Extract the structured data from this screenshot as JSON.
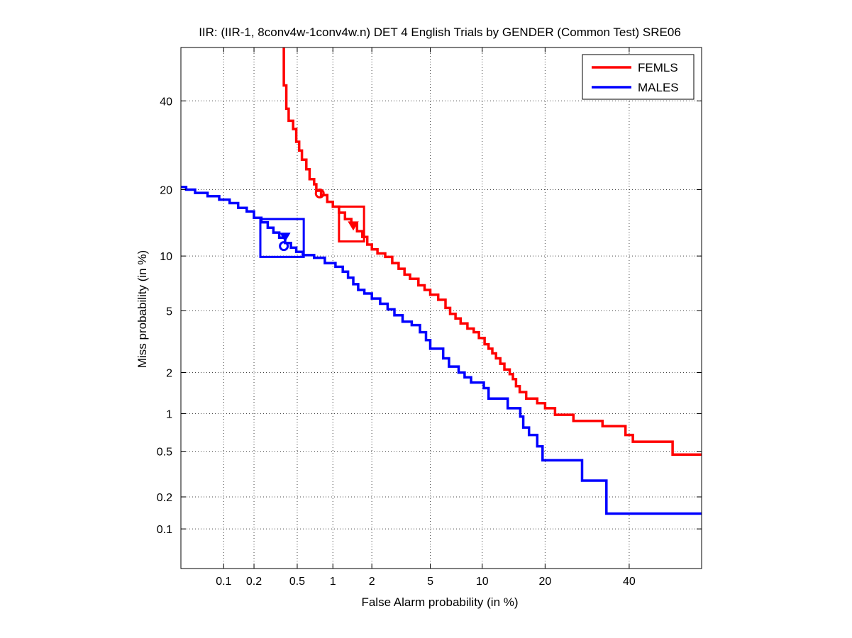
{
  "chart_data": {
    "type": "line",
    "title": "IIR: (IIR-1, 8conv4w-1conv4w.n) DET 4 English Trials by GENDER (Common Test) SRE06",
    "xlabel": "False Alarm probability (in %)",
    "ylabel": "Miss probability (in %)",
    "x_scale": "probit",
    "y_scale": "probit",
    "xlim": [
      0.035,
      60
    ],
    "ylim": [
      0.04,
      54
    ],
    "x_ticks": [
      0.1,
      0.2,
      0.5,
      1,
      2,
      5,
      10,
      20,
      40
    ],
    "x_tick_labels": [
      "0.1",
      "0.2",
      "0.5",
      "1",
      "2",
      "5",
      "10",
      "20",
      "40"
    ],
    "y_ticks": [
      0.1,
      0.2,
      0.5,
      1,
      2,
      5,
      10,
      20,
      40
    ],
    "y_tick_labels": [
      "0.1",
      "0.2",
      "0.5",
      "1",
      "2",
      "5",
      "10",
      "20",
      "40"
    ],
    "grid": true,
    "legend_position": "top-right",
    "series": [
      {
        "name": "FEMLS",
        "color": "#ff0000",
        "points": [
          [
            0.38,
            54
          ],
          [
            0.38,
            44
          ],
          [
            0.4,
            44
          ],
          [
            0.4,
            38
          ],
          [
            0.42,
            38
          ],
          [
            0.42,
            35
          ],
          [
            0.46,
            35
          ],
          [
            0.46,
            33
          ],
          [
            0.49,
            33
          ],
          [
            0.49,
            30
          ],
          [
            0.52,
            30
          ],
          [
            0.52,
            28
          ],
          [
            0.55,
            28
          ],
          [
            0.55,
            26
          ],
          [
            0.6,
            26
          ],
          [
            0.6,
            24
          ],
          [
            0.64,
            24
          ],
          [
            0.64,
            22
          ],
          [
            0.7,
            22
          ],
          [
            0.7,
            21
          ],
          [
            0.73,
            21
          ],
          [
            0.73,
            19.8
          ],
          [
            0.8,
            19.8
          ],
          [
            0.8,
            19
          ],
          [
            0.9,
            19
          ],
          [
            0.9,
            17.8
          ],
          [
            1.0,
            17.8
          ],
          [
            1.0,
            17
          ],
          [
            1.12,
            17
          ],
          [
            1.12,
            16
          ],
          [
            1.25,
            16
          ],
          [
            1.25,
            15
          ],
          [
            1.4,
            15
          ],
          [
            1.4,
            14.2
          ],
          [
            1.55,
            14.2
          ],
          [
            1.55,
            13.2
          ],
          [
            1.7,
            13.2
          ],
          [
            1.7,
            12.4
          ],
          [
            1.85,
            12.4
          ],
          [
            1.85,
            11.4
          ],
          [
            2.0,
            11.4
          ],
          [
            2.0,
            10.8
          ],
          [
            2.2,
            10.8
          ],
          [
            2.2,
            10.3
          ],
          [
            2.5,
            10.3
          ],
          [
            2.5,
            9.9
          ],
          [
            2.8,
            9.9
          ],
          [
            2.8,
            9.2
          ],
          [
            3.1,
            9.2
          ],
          [
            3.1,
            8.6
          ],
          [
            3.4,
            8.6
          ],
          [
            3.4,
            8.0
          ],
          [
            3.7,
            8.0
          ],
          [
            3.7,
            7.6
          ],
          [
            4.2,
            7.6
          ],
          [
            4.2,
            7.0
          ],
          [
            4.6,
            7.0
          ],
          [
            4.6,
            6.6
          ],
          [
            5.0,
            6.6
          ],
          [
            5.0,
            6.2
          ],
          [
            5.6,
            6.2
          ],
          [
            5.6,
            5.8
          ],
          [
            6.2,
            5.8
          ],
          [
            6.2,
            5.2
          ],
          [
            6.6,
            5.2
          ],
          [
            6.6,
            4.8
          ],
          [
            7.1,
            4.8
          ],
          [
            7.1,
            4.5
          ],
          [
            7.6,
            4.5
          ],
          [
            7.6,
            4.2
          ],
          [
            8.3,
            4.2
          ],
          [
            8.3,
            3.9
          ],
          [
            9.0,
            3.9
          ],
          [
            9.0,
            3.7
          ],
          [
            9.6,
            3.7
          ],
          [
            9.6,
            3.4
          ],
          [
            10.3,
            3.4
          ],
          [
            10.3,
            3.1
          ],
          [
            10.8,
            3.1
          ],
          [
            10.8,
            2.9
          ],
          [
            11.3,
            2.9
          ],
          [
            11.3,
            2.7
          ],
          [
            11.8,
            2.7
          ],
          [
            11.8,
            2.5
          ],
          [
            12.4,
            2.5
          ],
          [
            12.4,
            2.3
          ],
          [
            13.0,
            2.3
          ],
          [
            13.0,
            2.1
          ],
          [
            13.8,
            2.1
          ],
          [
            13.8,
            1.95
          ],
          [
            14.3,
            1.95
          ],
          [
            14.3,
            1.8
          ],
          [
            14.8,
            1.8
          ],
          [
            14.8,
            1.6
          ],
          [
            15.4,
            1.6
          ],
          [
            15.4,
            1.45
          ],
          [
            16.5,
            1.45
          ],
          [
            16.5,
            1.3
          ],
          [
            18.5,
            1.3
          ],
          [
            18.5,
            1.2
          ],
          [
            20.0,
            1.2
          ],
          [
            20.0,
            1.1
          ],
          [
            22.0,
            1.1
          ],
          [
            22.0,
            0.98
          ],
          [
            26.0,
            0.98
          ],
          [
            26.0,
            0.88
          ],
          [
            33.0,
            0.88
          ],
          [
            33.0,
            0.8
          ],
          [
            39.0,
            0.8
          ],
          [
            39.0,
            0.68
          ],
          [
            41.0,
            0.68
          ],
          [
            41.0,
            0.6
          ],
          [
            52.0,
            0.6
          ],
          [
            52.0,
            0.47
          ],
          [
            60.0,
            0.47
          ]
        ],
        "markers": [
          {
            "shape": "circle",
            "x": 0.78,
            "y": 19.3
          },
          {
            "shape": "triangle-down",
            "x": 1.45,
            "y": 14.0
          }
        ],
        "box": {
          "x": [
            1.12,
            1.75
          ],
          "y": [
            11.8,
            17.0
          ]
        }
      },
      {
        "name": "MALES",
        "color": "#0000ff",
        "points": [
          [
            0.035,
            20.5
          ],
          [
            0.04,
            20.5
          ],
          [
            0.04,
            20.0
          ],
          [
            0.05,
            20.0
          ],
          [
            0.05,
            19.4
          ],
          [
            0.068,
            19.4
          ],
          [
            0.068,
            18.8
          ],
          [
            0.09,
            18.8
          ],
          [
            0.09,
            18.2
          ],
          [
            0.115,
            18.2
          ],
          [
            0.115,
            17.6
          ],
          [
            0.14,
            17.6
          ],
          [
            0.14,
            16.8
          ],
          [
            0.17,
            16.8
          ],
          [
            0.17,
            16.2
          ],
          [
            0.2,
            16.2
          ],
          [
            0.2,
            15.2
          ],
          [
            0.235,
            15.2
          ],
          [
            0.235,
            14.5
          ],
          [
            0.27,
            14.5
          ],
          [
            0.27,
            13.7
          ],
          [
            0.305,
            13.7
          ],
          [
            0.305,
            13.0
          ],
          [
            0.345,
            13.0
          ],
          [
            0.345,
            12.3
          ],
          [
            0.39,
            12.3
          ],
          [
            0.39,
            11.6
          ],
          [
            0.44,
            11.6
          ],
          [
            0.44,
            11.0
          ],
          [
            0.49,
            11.0
          ],
          [
            0.49,
            10.5
          ],
          [
            0.56,
            10.5
          ],
          [
            0.56,
            10.1
          ],
          [
            0.7,
            10.1
          ],
          [
            0.7,
            9.8
          ],
          [
            0.86,
            9.8
          ],
          [
            0.86,
            9.2
          ],
          [
            1.05,
            9.2
          ],
          [
            1.05,
            8.8
          ],
          [
            1.2,
            8.8
          ],
          [
            1.2,
            8.3
          ],
          [
            1.32,
            8.3
          ],
          [
            1.32,
            7.7
          ],
          [
            1.45,
            7.7
          ],
          [
            1.45,
            7.1
          ],
          [
            1.58,
            7.1
          ],
          [
            1.58,
            6.6
          ],
          [
            1.76,
            6.6
          ],
          [
            1.76,
            6.3
          ],
          [
            2.0,
            6.3
          ],
          [
            2.0,
            5.9
          ],
          [
            2.3,
            5.9
          ],
          [
            2.3,
            5.5
          ],
          [
            2.6,
            5.5
          ],
          [
            2.6,
            5.1
          ],
          [
            2.9,
            5.1
          ],
          [
            2.9,
            4.7
          ],
          [
            3.3,
            4.7
          ],
          [
            3.3,
            4.3
          ],
          [
            3.8,
            4.3
          ],
          [
            3.8,
            4.1
          ],
          [
            4.3,
            4.1
          ],
          [
            4.3,
            3.7
          ],
          [
            4.7,
            3.7
          ],
          [
            4.7,
            3.3
          ],
          [
            5.0,
            3.3
          ],
          [
            5.0,
            2.9
          ],
          [
            6.0,
            2.9
          ],
          [
            6.0,
            2.5
          ],
          [
            6.5,
            2.5
          ],
          [
            6.5,
            2.2
          ],
          [
            7.4,
            2.2
          ],
          [
            7.4,
            2.0
          ],
          [
            8.0,
            2.0
          ],
          [
            8.0,
            1.85
          ],
          [
            8.7,
            1.85
          ],
          [
            8.7,
            1.7
          ],
          [
            10.2,
            1.7
          ],
          [
            10.2,
            1.55
          ],
          [
            10.8,
            1.55
          ],
          [
            10.8,
            1.3
          ],
          [
            13.5,
            1.3
          ],
          [
            13.5,
            1.1
          ],
          [
            15.5,
            1.1
          ],
          [
            15.5,
            0.95
          ],
          [
            16.0,
            0.95
          ],
          [
            16.0,
            0.78
          ],
          [
            17.0,
            0.78
          ],
          [
            17.0,
            0.68
          ],
          [
            18.5,
            0.68
          ],
          [
            18.5,
            0.55
          ],
          [
            19.5,
            0.55
          ],
          [
            19.5,
            0.42
          ],
          [
            28.0,
            0.42
          ],
          [
            28.0,
            0.28
          ],
          [
            34.0,
            0.28
          ],
          [
            34.0,
            0.14
          ],
          [
            60.0,
            0.14
          ]
        ],
        "markers": [
          {
            "shape": "circle",
            "x": 0.38,
            "y": 11.2
          },
          {
            "shape": "triangle-down",
            "x": 0.39,
            "y": 12.4
          }
        ],
        "box": {
          "x": [
            0.23,
            0.57
          ],
          "y": [
            9.9,
            15.0
          ]
        }
      }
    ]
  }
}
